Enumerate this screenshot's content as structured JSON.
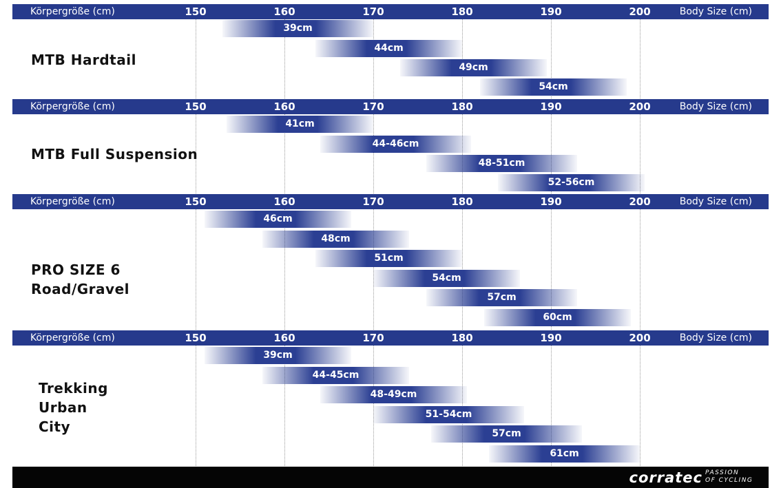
{
  "chart_data": {
    "type": "bar",
    "xlabel_de": "Körpergröße (cm)",
    "xlabel_en": "Body Size (cm)",
    "xlim": [
      150,
      200
    ],
    "ticks": [
      "150",
      "160",
      "170",
      "180",
      "190",
      "200"
    ],
    "grid": true,
    "panels": [
      {
        "category": [
          "MTB Hardtail"
        ],
        "bars": [
          {
            "label": "39cm",
            "start": 153,
            "end": 170
          },
          {
            "label": "44cm",
            "start": 163.5,
            "end": 180
          },
          {
            "label": "49cm",
            "start": 173,
            "end": 189.5
          },
          {
            "label": "54cm",
            "start": 182,
            "end": 198.5
          }
        ]
      },
      {
        "category": [
          "MTB Full Suspension"
        ],
        "bars": [
          {
            "label": "41cm",
            "start": 153.5,
            "end": 170
          },
          {
            "label": "44-46cm",
            "start": 164,
            "end": 181
          },
          {
            "label": "48-51cm",
            "start": 176,
            "end": 193
          },
          {
            "label": "52-56cm",
            "start": 184,
            "end": 200.5
          }
        ]
      },
      {
        "category": [
          "PRO SIZE 6",
          "Road/Gravel"
        ],
        "bars": [
          {
            "label": "46cm",
            "start": 151,
            "end": 167.5
          },
          {
            "label": "48cm",
            "start": 157.5,
            "end": 174
          },
          {
            "label": "51cm",
            "start": 163.5,
            "end": 180
          },
          {
            "label": "54cm",
            "start": 170,
            "end": 186.5
          },
          {
            "label": "57cm",
            "start": 176,
            "end": 193
          },
          {
            "label": "60cm",
            "start": 182.5,
            "end": 199
          }
        ]
      },
      {
        "category": [
          "Trekking",
          "Urban",
          "City"
        ],
        "bars": [
          {
            "label": "39cm",
            "start": 151,
            "end": 167.5
          },
          {
            "label": "44-45cm",
            "start": 157.5,
            "end": 174
          },
          {
            "label": "48-49cm",
            "start": 164,
            "end": 180.5
          },
          {
            "label": "51-54cm",
            "start": 170,
            "end": 187
          },
          {
            "label": "57cm",
            "start": 176.5,
            "end": 193.5
          },
          {
            "label": "61cm",
            "start": 183,
            "end": 200
          }
        ]
      }
    ]
  },
  "brand": {
    "name": "corratec",
    "tagline": [
      "PASSION",
      "OF CYCLING"
    ]
  },
  "colors": {
    "header": "#263a8c",
    "bar": "#2b3f93",
    "footer": "#050505"
  }
}
